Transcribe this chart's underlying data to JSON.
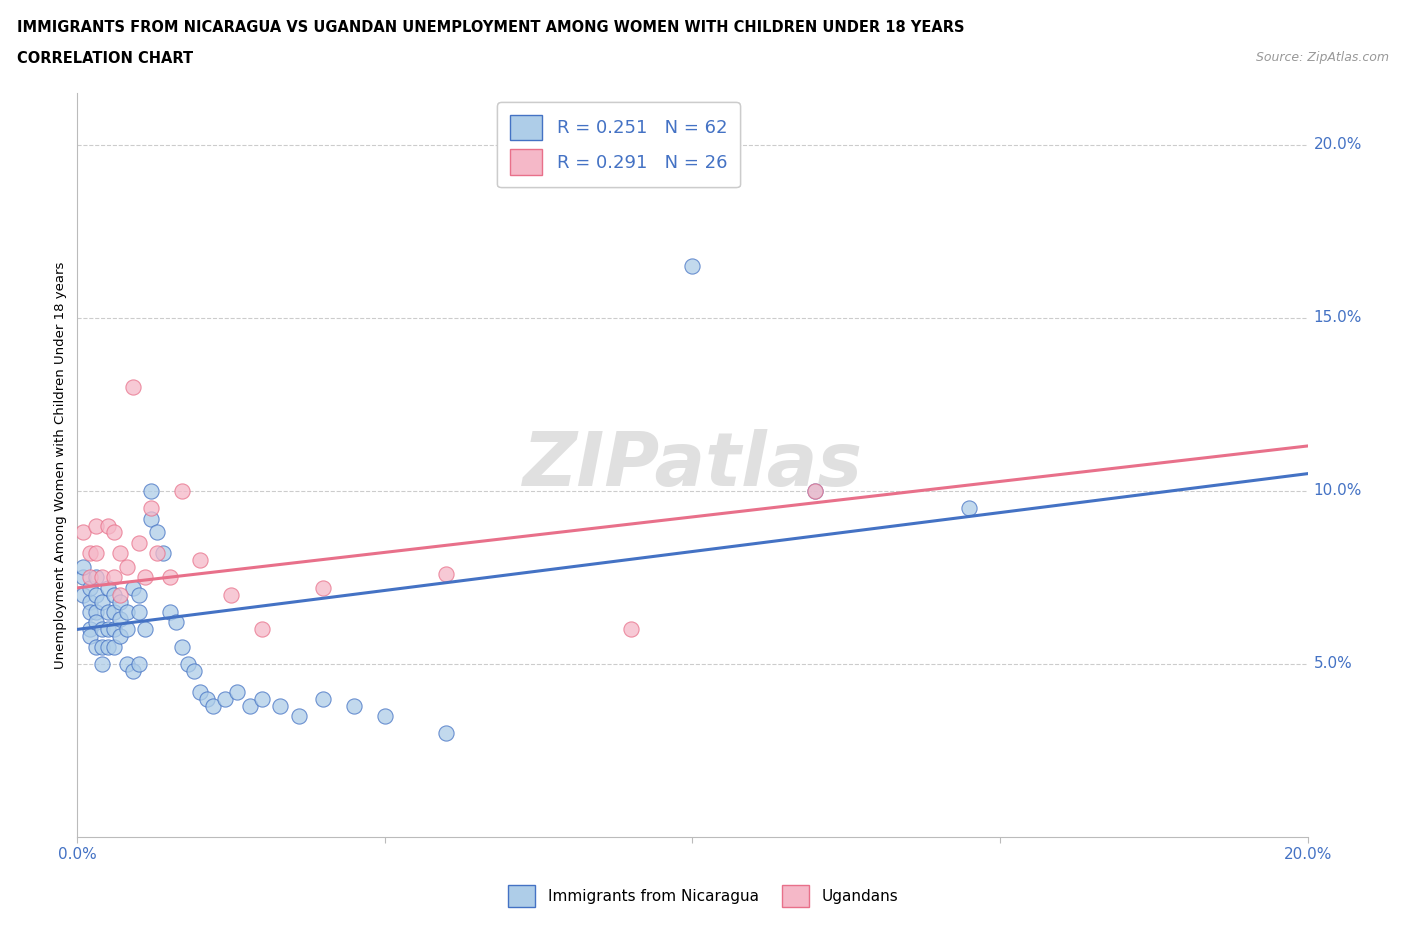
{
  "title_line1": "IMMIGRANTS FROM NICARAGUA VS UGANDAN UNEMPLOYMENT AMONG WOMEN WITH CHILDREN UNDER 18 YEARS",
  "title_line2": "CORRELATION CHART",
  "source_text": "Source: ZipAtlas.com",
  "ylabel": "Unemployment Among Women with Children Under 18 years",
  "xlim": [
    0.0,
    0.2
  ],
  "ylim": [
    0.0,
    0.215
  ],
  "xtick_vals": [
    0.0,
    0.05,
    0.1,
    0.15,
    0.2
  ],
  "ytick_vals": [
    0.05,
    0.1,
    0.15,
    0.2
  ],
  "blue_color": "#AECDE8",
  "pink_color": "#F5B8C8",
  "blue_line_color": "#4472C4",
  "pink_line_color": "#E8708A",
  "watermark_text": "ZIPatlas",
  "blue_scatter_x": [
    0.001,
    0.001,
    0.001,
    0.002,
    0.002,
    0.002,
    0.002,
    0.002,
    0.003,
    0.003,
    0.003,
    0.003,
    0.003,
    0.004,
    0.004,
    0.004,
    0.004,
    0.005,
    0.005,
    0.005,
    0.005,
    0.006,
    0.006,
    0.006,
    0.006,
    0.007,
    0.007,
    0.007,
    0.008,
    0.008,
    0.008,
    0.009,
    0.009,
    0.01,
    0.01,
    0.01,
    0.011,
    0.012,
    0.012,
    0.013,
    0.014,
    0.015,
    0.016,
    0.017,
    0.018,
    0.019,
    0.02,
    0.021,
    0.022,
    0.024,
    0.026,
    0.028,
    0.03,
    0.033,
    0.036,
    0.04,
    0.045,
    0.05,
    0.06,
    0.1,
    0.12,
    0.145
  ],
  "blue_scatter_y": [
    0.075,
    0.078,
    0.07,
    0.068,
    0.072,
    0.065,
    0.06,
    0.058,
    0.07,
    0.075,
    0.065,
    0.062,
    0.055,
    0.068,
    0.06,
    0.055,
    0.05,
    0.072,
    0.065,
    0.06,
    0.055,
    0.07,
    0.065,
    0.06,
    0.055,
    0.068,
    0.063,
    0.058,
    0.065,
    0.06,
    0.05,
    0.072,
    0.048,
    0.07,
    0.065,
    0.05,
    0.06,
    0.1,
    0.092,
    0.088,
    0.082,
    0.065,
    0.062,
    0.055,
    0.05,
    0.048,
    0.042,
    0.04,
    0.038,
    0.04,
    0.042,
    0.038,
    0.04,
    0.038,
    0.035,
    0.04,
    0.038,
    0.035,
    0.03,
    0.165,
    0.1,
    0.095
  ],
  "pink_scatter_x": [
    0.001,
    0.002,
    0.002,
    0.003,
    0.003,
    0.004,
    0.005,
    0.006,
    0.006,
    0.007,
    0.007,
    0.008,
    0.009,
    0.01,
    0.011,
    0.012,
    0.013,
    0.015,
    0.017,
    0.02,
    0.025,
    0.03,
    0.04,
    0.06,
    0.09,
    0.12
  ],
  "pink_scatter_y": [
    0.088,
    0.082,
    0.075,
    0.09,
    0.082,
    0.075,
    0.09,
    0.088,
    0.075,
    0.082,
    0.07,
    0.078,
    0.13,
    0.085,
    0.075,
    0.095,
    0.082,
    0.075,
    0.1,
    0.08,
    0.07,
    0.06,
    0.072,
    0.076,
    0.06,
    0.1
  ],
  "blue_trend_x": [
    0.0,
    0.2
  ],
  "blue_trend_y": [
    0.06,
    0.105
  ],
  "pink_trend_x": [
    0.0,
    0.2
  ],
  "pink_trend_y": [
    0.072,
    0.113
  ]
}
